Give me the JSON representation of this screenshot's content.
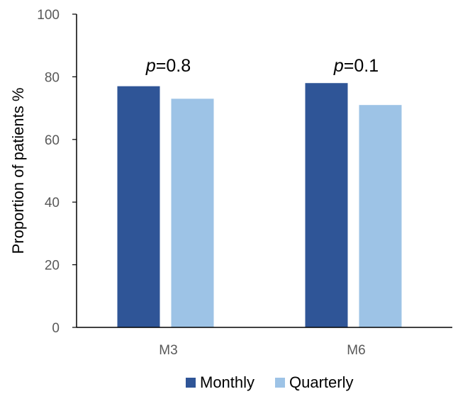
{
  "chart_data": {
    "type": "bar",
    "categories": [
      "M3",
      "M6"
    ],
    "series": [
      {
        "name": "Monthly",
        "values": [
          77,
          78
        ],
        "color": "#2F5597"
      },
      {
        "name": "Quarterly",
        "values": [
          73,
          71
        ],
        "color": "#9DC3E6"
      }
    ],
    "title": "",
    "xlabel": "",
    "ylabel": "Proportion of patients %",
    "ylim": [
      0,
      100
    ],
    "yticks": [
      0,
      20,
      40,
      60,
      80,
      100
    ],
    "grid": false,
    "legend": "bottom",
    "annotations": [
      {
        "category": "M3",
        "prefix": "p",
        "text": "=0.8"
      },
      {
        "category": "M6",
        "prefix": "p",
        "text": "=0.1"
      }
    ]
  }
}
